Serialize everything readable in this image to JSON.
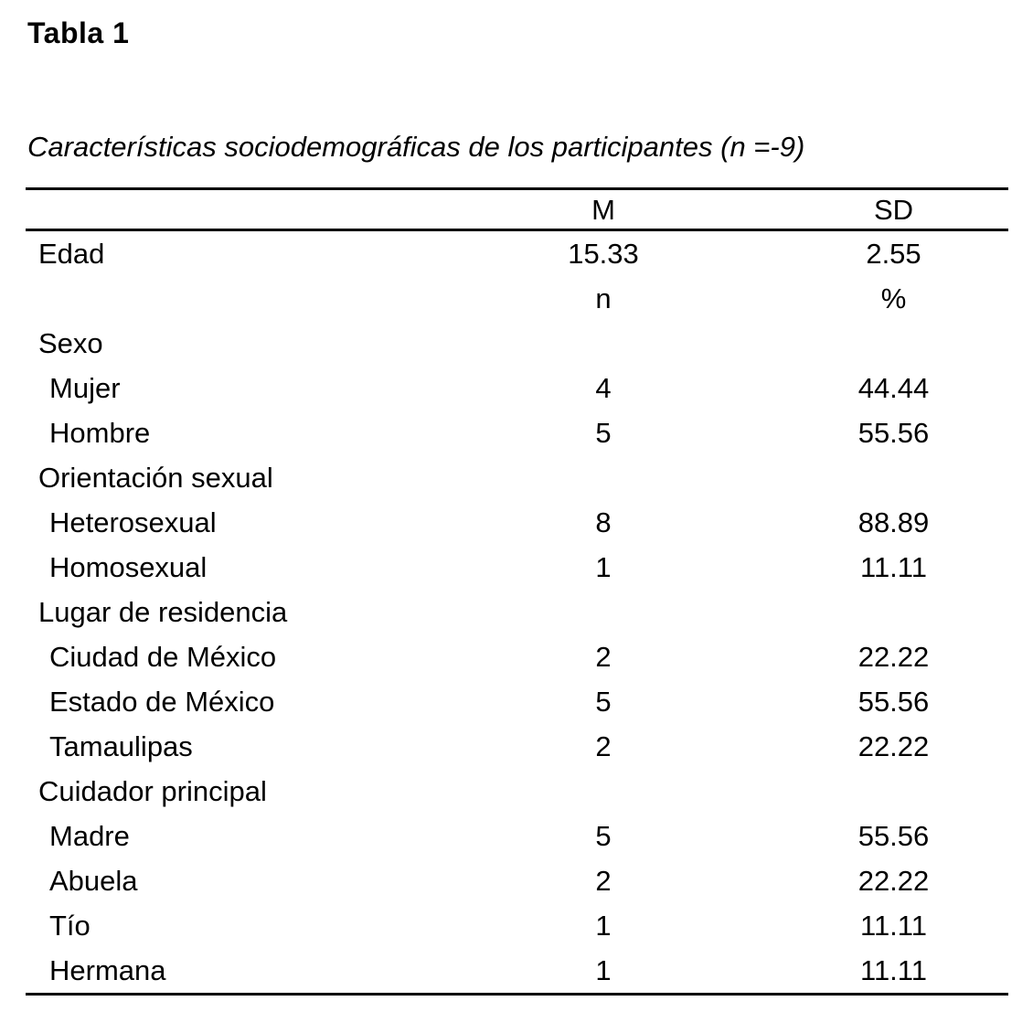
{
  "page": {
    "label": "Tabla 1",
    "caption": "Características sociodemográficas de los participantes (n =-9)"
  },
  "colors": {
    "text": "#000000",
    "background": "#ffffff",
    "rule": "#000000"
  },
  "table": {
    "columns": {
      "label": "",
      "m": "M",
      "sd": "SD"
    },
    "rows": [
      {
        "label": "Edad",
        "indent": 0,
        "n": "15.33",
        "pct": "2.55"
      },
      {
        "label": "",
        "indent": 0,
        "n": "n",
        "pct": "%"
      },
      {
        "label": "Sexo",
        "indent": 0,
        "n": "",
        "pct": ""
      },
      {
        "label": "Mujer",
        "indent": 1,
        "n": "4",
        "pct": "44.44"
      },
      {
        "label": "Hombre",
        "indent": 1,
        "n": "5",
        "pct": "55.56"
      },
      {
        "label": "Orientación sexual",
        "indent": 0,
        "n": "",
        "pct": ""
      },
      {
        "label": "Heterosexual",
        "indent": 1,
        "n": "8",
        "pct": "88.89"
      },
      {
        "label": "Homosexual",
        "indent": 1,
        "n": "1",
        "pct": "11.11"
      },
      {
        "label": "Lugar de residencia",
        "indent": 0,
        "n": "",
        "pct": ""
      },
      {
        "label": "Ciudad de México",
        "indent": 1,
        "n": "2",
        "pct": "22.22"
      },
      {
        "label": "Estado de México",
        "indent": 1,
        "n": "5",
        "pct": "55.56"
      },
      {
        "label": "Tamaulipas",
        "indent": 1,
        "n": "2",
        "pct": "22.22"
      },
      {
        "label": "Cuidador principal",
        "indent": 0,
        "n": "",
        "pct": ""
      },
      {
        "label": "Madre",
        "indent": 1,
        "n": "5",
        "pct": "55.56"
      },
      {
        "label": "Abuela",
        "indent": 1,
        "n": "2",
        "pct": "22.22"
      },
      {
        "label": "Tío",
        "indent": 1,
        "n": "1",
        "pct": "11.11"
      },
      {
        "label": "Hermana",
        "indent": 1,
        "n": "1",
        "pct": "11.11"
      }
    ]
  }
}
